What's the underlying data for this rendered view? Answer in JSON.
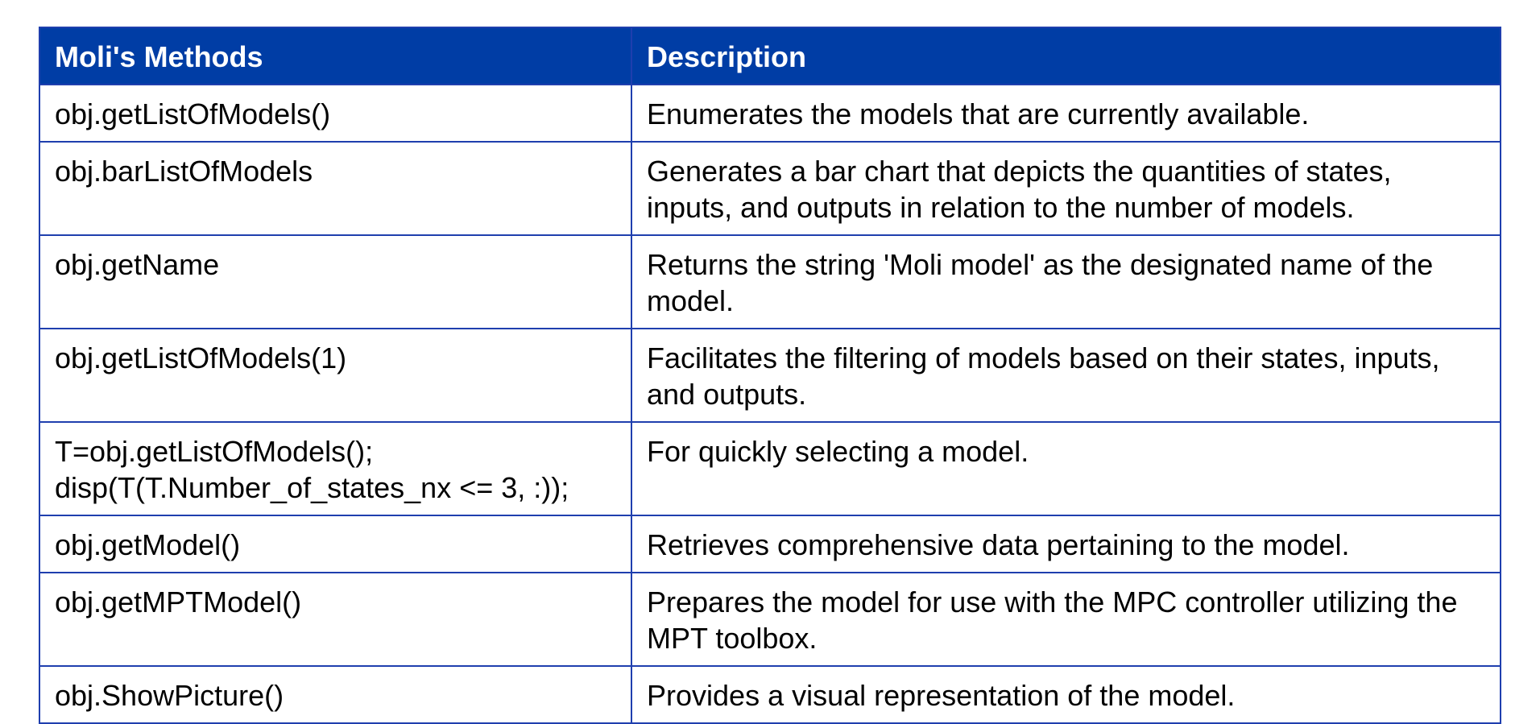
{
  "table": {
    "header": {
      "method": "Moli's Methods",
      "description": "Description"
    },
    "rows": [
      {
        "method": [
          "obj.getListOfModels()"
        ],
        "description": [
          "Enumerates the models that are currently available."
        ]
      },
      {
        "method": [
          "obj.barListOfModels"
        ],
        "description": [
          "Generates a bar chart that depicts the quantities of states,",
          "inputs, and outputs in relation to the number of models."
        ]
      },
      {
        "method": [
          "obj.getName"
        ],
        "description": [
          "Returns the string 'Moli model' as the designated name of the",
          "model."
        ]
      },
      {
        "method": [
          "obj.getListOfModels(1)"
        ],
        "description": [
          "Facilitates the filtering of models based on their states, inputs,",
          "and outputs."
        ]
      },
      {
        "method": [
          "T=obj.getListOfModels();",
          "disp(T(T.Number_of_states_nx <= 3, :));"
        ],
        "description": [
          "For quickly selecting a model."
        ]
      },
      {
        "method": [
          "obj.getModel()"
        ],
        "description": [
          "Retrieves comprehensive data pertaining to the model."
        ]
      },
      {
        "method": [
          "obj.getMPTModel()"
        ],
        "description": [
          "Prepares the model for use with the MPC controller utilizing the",
          "MPT toolbox."
        ]
      },
      {
        "method": [
          "obj.ShowPicture()"
        ],
        "description": [
          "Provides a visual representation of the model."
        ]
      }
    ]
  }
}
